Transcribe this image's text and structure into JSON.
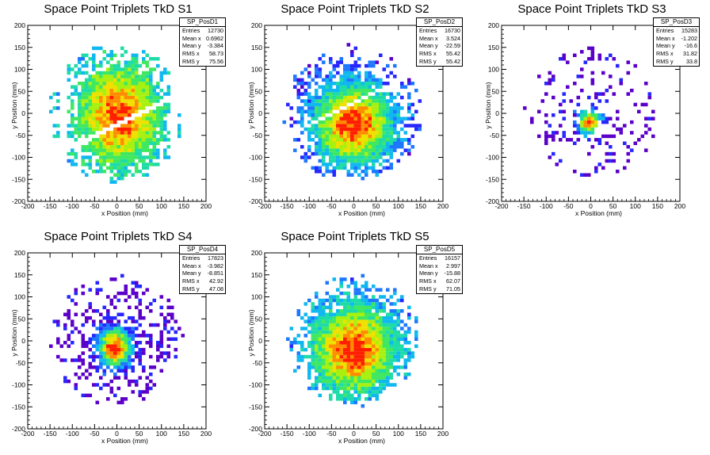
{
  "palette": [
    "#5a00c8",
    "#2626ff",
    "#1e78ff",
    "#10b8f0",
    "#1edca8",
    "#40e860",
    "#a8f010",
    "#f0e000",
    "#ff8c00",
    "#ff1e00"
  ],
  "chart_data": [
    {
      "type": "heatmap",
      "id": "SP_PosD1",
      "title": "Space Point Triplets TkD S1",
      "xlabel": "x Position (mm)",
      "ylabel": "y Position (mm)",
      "xlim": [
        -200,
        200
      ],
      "ylim": [
        -200,
        200
      ],
      "xticks": [
        -200,
        -150,
        -100,
        -50,
        0,
        50,
        100,
        150,
        200
      ],
      "yticks": [
        -200,
        -150,
        -100,
        -50,
        0,
        50,
        100,
        150,
        200
      ],
      "stats": [
        {
          "label": "Entries",
          "value": "12730"
        },
        {
          "label": "Mean x",
          "value": "0.6962"
        },
        {
          "label": "Mean y",
          "value": "-3.384"
        },
        {
          "label": "RMS x",
          "value": "58.73"
        },
        {
          "label": "RMS y",
          "value": "75.56"
        }
      ],
      "distribution": {
        "cx": 5,
        "cy": -5,
        "sx": 55,
        "sy": 70,
        "radius": 158,
        "fill": 0.95,
        "peak": 9,
        "base": 3,
        "gaps": [
          {
            "slope": 0.5,
            "offset": -25,
            "width": 10
          },
          {
            "slope": 0.5,
            "offset": 120,
            "width": 10
          }
        ],
        "xband": [
          -150,
          165
        ],
        "cutx": [
          -125,
          -110,
          120,
          135
        ]
      }
    },
    {
      "type": "heatmap",
      "id": "SP_PosD2",
      "title": "Space Point Triplets TkD S2",
      "xlabel": "x Position (mm)",
      "ylabel": "y Position (mm)",
      "xlim": [
        -200,
        200
      ],
      "ylim": [
        -200,
        200
      ],
      "xticks": [
        -200,
        -150,
        -100,
        -50,
        0,
        50,
        100,
        150,
        200
      ],
      "yticks": [
        -200,
        -150,
        -100,
        -50,
        0,
        50,
        100,
        150,
        200
      ],
      "stats": [
        {
          "label": "Entries",
          "value": "16730"
        },
        {
          "label": "Mean x",
          "value": "3.524"
        },
        {
          "label": "Mean y",
          "value": "-22.59"
        },
        {
          "label": "RMS x",
          "value": "55.42"
        },
        {
          "label": "RMS y",
          "value": "55.42"
        }
      ],
      "distribution": {
        "cx": 0,
        "cy": -25,
        "sx": 60,
        "sy": 60,
        "radius": 158,
        "fill": 0.93,
        "peak": 9,
        "base": 1,
        "gaps": [
          {
            "slope": 0.5,
            "offset": 25,
            "width": 8
          }
        ],
        "xband": [
          -160,
          160
        ]
      }
    },
    {
      "type": "heatmap",
      "id": "SP_PosD3",
      "title": "Space Point Triplets TkD S3",
      "xlabel": "x Position (mm)",
      "ylabel": "y Position (mm)",
      "xlim": [
        -200,
        200
      ],
      "ylim": [
        -200,
        200
      ],
      "xticks": [
        -200,
        -150,
        -100,
        -50,
        0,
        50,
        100,
        150,
        200
      ],
      "yticks": [
        -200,
        -150,
        -100,
        -50,
        0,
        50,
        100,
        150,
        200
      ],
      "stats": [
        {
          "label": "Entries",
          "value": "15283"
        },
        {
          "label": "Mean x",
          "value": "-1.202"
        },
        {
          "label": "Mean y",
          "value": "-16.6"
        },
        {
          "label": "RMS x",
          "value": "31.82"
        },
        {
          "label": "RMS y",
          "value": "33.8"
        }
      ],
      "distribution": {
        "cx": -3,
        "cy": -20,
        "sx": 18,
        "sy": 18,
        "radius": 150,
        "fill": 0.55,
        "peak": 9,
        "base": 0,
        "gaps": [],
        "xband": [
          -160,
          160
        ]
      }
    },
    {
      "type": "heatmap",
      "id": "SP_PosD4",
      "title": "Space Point Triplets TkD S4",
      "xlabel": "x Position (mm)",
      "ylabel": "y Position (mm)",
      "xlim": [
        -200,
        200
      ],
      "ylim": [
        -200,
        200
      ],
      "xticks": [
        -200,
        -150,
        -100,
        -50,
        0,
        50,
        100,
        150,
        200
      ],
      "yticks": [
        -200,
        -150,
        -100,
        -50,
        0,
        50,
        100,
        150,
        200
      ],
      "stats": [
        {
          "label": "Entries",
          "value": "17823"
        },
        {
          "label": "Mean x",
          "value": "-3.982"
        },
        {
          "label": "Mean y",
          "value": "-8.851"
        },
        {
          "label": "RMS x",
          "value": "42.92"
        },
        {
          "label": "RMS y",
          "value": "47.08"
        }
      ],
      "distribution": {
        "cx": -5,
        "cy": -15,
        "sx": 25,
        "sy": 30,
        "radius": 150,
        "fill": 0.9,
        "peak": 9,
        "base": 0,
        "gaps": [],
        "xband": [
          -160,
          165
        ]
      }
    },
    {
      "type": "heatmap",
      "id": "SP_PosD5",
      "title": "Space Point Triplets TkD S5",
      "xlabel": "x Position (mm)",
      "ylabel": "y Position (mm)",
      "xlim": [
        -200,
        200
      ],
      "ylim": [
        -200,
        200
      ],
      "xticks": [
        -200,
        -150,
        -100,
        -50,
        0,
        50,
        100,
        150,
        200
      ],
      "yticks": [
        -200,
        -150,
        -100,
        -50,
        0,
        50,
        100,
        150,
        200
      ],
      "stats": [
        {
          "label": "Entries",
          "value": "16157"
        },
        {
          "label": "Mean x",
          "value": "2.997"
        },
        {
          "label": "Mean y",
          "value": "-15.88"
        },
        {
          "label": "RMS x",
          "value": "62.07"
        },
        {
          "label": "RMS y",
          "value": "71.05"
        }
      ],
      "distribution": {
        "cx": 0,
        "cy": -20,
        "sx": 60,
        "sy": 65,
        "radius": 150,
        "fill": 0.95,
        "peak": 9,
        "base": 2,
        "gaps": [],
        "xband": [
          -150,
          155
        ]
      }
    }
  ]
}
